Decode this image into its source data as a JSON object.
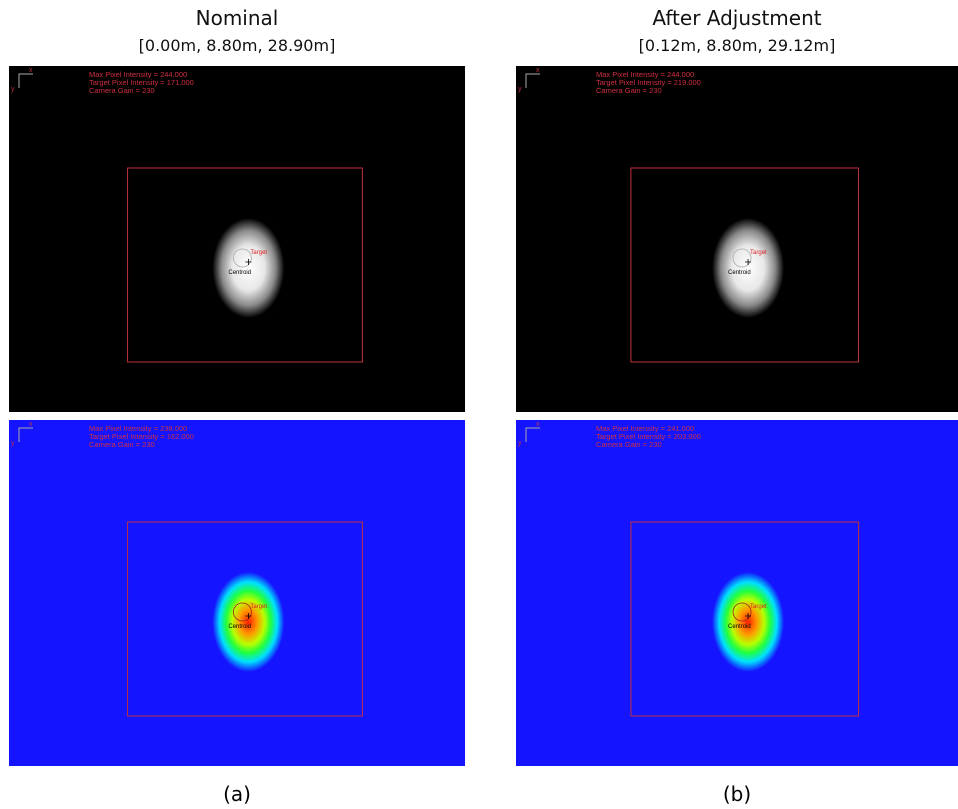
{
  "columns": [
    {
      "title": "Nominal",
      "position": "[0.00m, 8.80m, 28.90m]",
      "caption": "(a)",
      "panels": [
        {
          "axis_x": "x",
          "axis_y": "y",
          "readout": [
            "Max Pixel Intensity = 244.000",
            "Target Pixel Intensity = 171.000",
            "Camera Gain = 230"
          ],
          "target": "Target",
          "centroid": "Centroid"
        },
        {
          "axis_x": "x",
          "axis_y": "y",
          "readout": [
            "Max Pixel Intensity = 238.000",
            "Target Pixel Intensity = 162.000",
            "Camera Gain = 230"
          ],
          "target": "Target",
          "centroid": "Centroid"
        }
      ]
    },
    {
      "title": "After Adjustment",
      "position": "[0.12m, 8.80m, 29.12m]",
      "caption": "(b)",
      "panels": [
        {
          "axis_x": "x",
          "axis_y": "y",
          "readout": [
            "Max Pixel Intensity = 244.000",
            "Target Pixel Intensity = 219.000",
            "Camera Gain = 230"
          ],
          "target": "Target",
          "centroid": "Centroid"
        },
        {
          "axis_x": "x",
          "axis_y": "y",
          "readout": [
            "Max Pixel Intensity = 241.000",
            "Target Pixel Intensity = 203.000",
            "Camera Gain = 230"
          ],
          "target": "Target",
          "centroid": "Centroid"
        }
      ]
    }
  ]
}
